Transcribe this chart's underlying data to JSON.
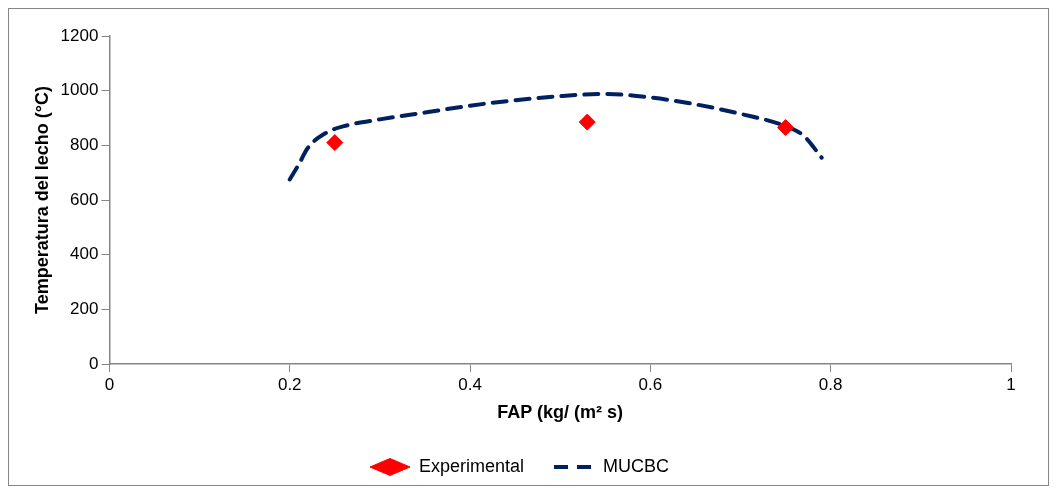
{
  "chart_data": {
    "type": "scatter",
    "xlabel": "FAP (kg/ (m² s)",
    "ylabel": "Temperatura del lecho (°C)",
    "xlim": [
      0,
      1
    ],
    "xticks": [
      0,
      0.2,
      0.4,
      0.6,
      0.8,
      1
    ],
    "ylim": [
      0,
      1200
    ],
    "yticks": [
      0,
      200,
      400,
      600,
      800,
      1000,
      1200
    ],
    "grid": false,
    "legend": "bottom",
    "series": [
      {
        "name": "Experimental",
        "color": "#ff0000",
        "marker": "diamond",
        "x": [
          0.25,
          0.53,
          0.75
        ],
        "values": [
          810,
          885,
          865
        ]
      },
      {
        "name": "MUCBC",
        "type": "line",
        "color": "#002060",
        "marker": "none",
        "line_style": "dashed",
        "x": [
          0.2,
          0.21,
          0.22,
          0.24,
          0.26,
          0.3,
          0.35,
          0.4,
          0.45,
          0.5,
          0.55,
          0.6,
          0.65,
          0.7,
          0.75,
          0.77,
          0.79
        ],
        "values": [
          675,
          730,
          790,
          845,
          870,
          895,
          920,
          945,
          965,
          980,
          988,
          975,
          950,
          915,
          870,
          835,
          755
        ]
      }
    ]
  }
}
